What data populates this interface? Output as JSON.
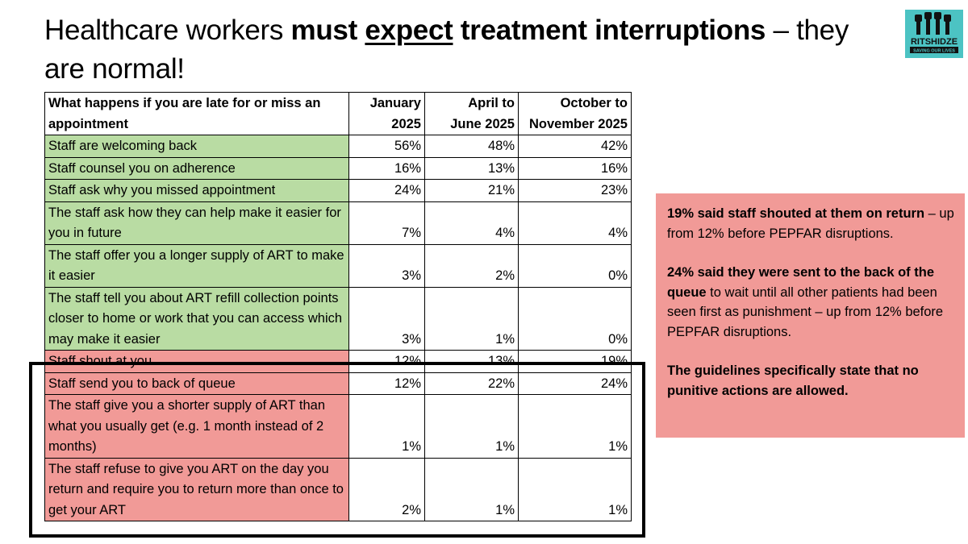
{
  "title": {
    "part1": "Healthcare workers ",
    "bold1": "must ",
    "underline": "expect",
    "bold2": " treatment interruptions",
    "part2": " – they are normal!"
  },
  "logo": {
    "icon": "raised-fists-icon",
    "name": "RITSHIDZE",
    "tagline": "SAVING OUR LIVES",
    "color": "#4cc3c3"
  },
  "table": {
    "header": {
      "question": "What happens if you are late for or miss an appointment",
      "col1_line1": "January",
      "col1_line2": "2025",
      "col2_line1": "April to",
      "col2_line2": "June 2025",
      "col3_line1": "October to",
      "col3_line2": "November 2025"
    },
    "rows": [
      {
        "label": "Staff are welcoming back",
        "v1": "56%",
        "v2": "48%",
        "v3": "42%"
      },
      {
        "label": "Staff counsel you on adherence",
        "v1": "16%",
        "v2": "13%",
        "v3": "16%"
      },
      {
        "label": "Staff ask why you missed appointment",
        "v1": "24%",
        "v2": "21%",
        "v3": "23%"
      },
      {
        "label": "The staff ask how they can help make it easier for you in future",
        "v1": "7%",
        "v2": "4%",
        "v3": "4%"
      },
      {
        "label": "The staff offer you a longer supply of ART to make it easier",
        "v1": "3%",
        "v2": "2%",
        "v3": "0%"
      },
      {
        "label": "The staff tell you about ART refill collection points closer to home or work that you can access which may make it easier",
        "v1": "3%",
        "v2": "1%",
        "v3": "0%"
      },
      {
        "label": "Staff shout at you",
        "v1": "12%",
        "v2": "13%",
        "v3": "19%"
      },
      {
        "label": "Staff send you to back of queue",
        "v1": "12%",
        "v2": "22%",
        "v3": "24%"
      },
      {
        "label": "The staff give you a shorter supply of ART than what you usually get (e.g. 1 month instead of 2 months)",
        "v1": "1%",
        "v2": "1%",
        "v3": "1%"
      },
      {
        "label": "The staff refuse to give you ART on the day you return and require you to return more than once to get your ART",
        "v1": "2%",
        "v2": "1%",
        "v3": "1%"
      }
    ],
    "positive_color": "#b9dca3",
    "negative_color": "#f19a97"
  },
  "callout": {
    "p1_bold": "19% said staff shouted at them on return",
    "p1_rest": " – up from 12% before PEPFAR disruptions.",
    "p2_bold": "24% said they were sent to the back of the queue",
    "p2_rest": " to wait until all other patients had been seen first as punishment – up from 12% before PEPFAR disruptions.",
    "p3_bold": "The guidelines specifically state that no punitive actions are allowed.",
    "color": "#f19a97"
  }
}
